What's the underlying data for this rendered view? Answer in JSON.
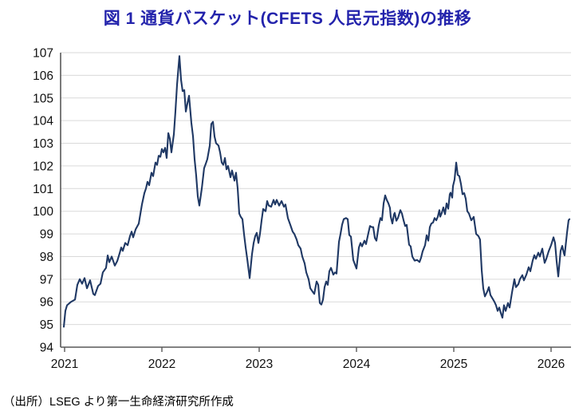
{
  "title": "図 1  通貨バスケット(CFETS 人民元指数)の推移",
  "source_note": "（出所）LSEG より第一生命経済研究所作成",
  "colors": {
    "title": "#2323AC",
    "line": "#1F3864",
    "grid": "#D9D9D9",
    "axis": "#595959",
    "tick_label": "#111111",
    "background": "#FFFFFF"
  },
  "chart_data": {
    "type": "line",
    "title": "図 1  通貨バスケット(CFETS 人民元指数)の推移",
    "series_name": "CFETS人民元指数",
    "xlabel": "",
    "ylabel": "",
    "ylim": [
      94,
      107
    ],
    "yticks": [
      94,
      95,
      96,
      97,
      98,
      99,
      100,
      101,
      102,
      103,
      104,
      105,
      106,
      107
    ],
    "xlim": [
      2020.959,
      2026.205
    ],
    "xticks": [
      2021,
      2022,
      2023,
      2024,
      2025,
      2026
    ],
    "grid": "horizontal",
    "legend": "none",
    "points": [
      [
        2020.992,
        94.9
      ],
      [
        2021.008,
        95.6
      ],
      [
        2021.025,
        95.85
      ],
      [
        2021.066,
        96.0
      ],
      [
        2021.107,
        96.1
      ],
      [
        2021.131,
        96.75
      ],
      [
        2021.156,
        97.0
      ],
      [
        2021.18,
        96.8
      ],
      [
        2021.205,
        97.05
      ],
      [
        2021.23,
        96.6
      ],
      [
        2021.262,
        96.95
      ],
      [
        2021.295,
        96.35
      ],
      [
        2021.311,
        96.3
      ],
      [
        2021.344,
        96.7
      ],
      [
        2021.369,
        96.8
      ],
      [
        2021.393,
        97.3
      ],
      [
        2021.426,
        97.5
      ],
      [
        2021.443,
        98.05
      ],
      [
        2021.459,
        97.75
      ],
      [
        2021.484,
        98.0
      ],
      [
        2021.516,
        97.6
      ],
      [
        2021.541,
        97.8
      ],
      [
        2021.566,
        98.15
      ],
      [
        2021.582,
        98.4
      ],
      [
        2021.598,
        98.25
      ],
      [
        2021.623,
        98.6
      ],
      [
        2021.648,
        98.5
      ],
      [
        2021.672,
        98.9
      ],
      [
        2021.689,
        99.1
      ],
      [
        2021.705,
        98.85
      ],
      [
        2021.73,
        99.2
      ],
      [
        2021.762,
        99.45
      ],
      [
        2021.795,
        100.3
      ],
      [
        2021.82,
        100.8
      ],
      [
        2021.836,
        101.0
      ],
      [
        2021.852,
        101.3
      ],
      [
        2021.869,
        101.15
      ],
      [
        2021.893,
        101.7
      ],
      [
        2021.91,
        101.55
      ],
      [
        2021.934,
        102.15
      ],
      [
        2021.951,
        102.05
      ],
      [
        2021.967,
        102.45
      ],
      [
        2021.984,
        102.4
      ],
      [
        2022.0,
        102.75
      ],
      [
        2022.016,
        102.6
      ],
      [
        2022.033,
        102.8
      ],
      [
        2022.049,
        102.35
      ],
      [
        2022.066,
        103.45
      ],
      [
        2022.082,
        103.2
      ],
      [
        2022.098,
        102.6
      ],
      [
        2022.123,
        103.4
      ],
      [
        2022.139,
        104.4
      ],
      [
        2022.156,
        105.6
      ],
      [
        2022.18,
        106.85
      ],
      [
        2022.197,
        105.8
      ],
      [
        2022.213,
        105.3
      ],
      [
        2022.23,
        105.35
      ],
      [
        2022.246,
        104.4
      ],
      [
        2022.262,
        104.75
      ],
      [
        2022.279,
        105.1
      ],
      [
        2022.303,
        103.9
      ],
      [
        2022.32,
        103.3
      ],
      [
        2022.336,
        102.3
      ],
      [
        2022.352,
        101.6
      ],
      [
        2022.369,
        100.65
      ],
      [
        2022.385,
        100.25
      ],
      [
        2022.41,
        101.0
      ],
      [
        2022.434,
        101.9
      ],
      [
        2022.451,
        102.1
      ],
      [
        2022.467,
        102.3
      ],
      [
        2022.492,
        102.9
      ],
      [
        2022.508,
        103.85
      ],
      [
        2022.525,
        103.95
      ],
      [
        2022.541,
        103.3
      ],
      [
        2022.557,
        103.0
      ],
      [
        2022.582,
        102.9
      ],
      [
        2022.598,
        102.6
      ],
      [
        2022.615,
        102.15
      ],
      [
        2022.631,
        102.05
      ],
      [
        2022.648,
        102.35
      ],
      [
        2022.664,
        101.85
      ],
      [
        2022.68,
        102.0
      ],
      [
        2022.705,
        101.5
      ],
      [
        2022.721,
        101.8
      ],
      [
        2022.746,
        101.35
      ],
      [
        2022.762,
        101.7
      ],
      [
        2022.779,
        101.0
      ],
      [
        2022.795,
        99.9
      ],
      [
        2022.811,
        99.75
      ],
      [
        2022.828,
        99.65
      ],
      [
        2022.844,
        99.0
      ],
      [
        2022.861,
        98.4
      ],
      [
        2022.877,
        97.9
      ],
      [
        2022.902,
        97.05
      ],
      [
        2022.926,
        98.1
      ],
      [
        2022.943,
        98.6
      ],
      [
        2022.959,
        98.9
      ],
      [
        2022.975,
        99.05
      ],
      [
        2022.992,
        98.6
      ],
      [
        2023.008,
        99.0
      ],
      [
        2023.025,
        99.6
      ],
      [
        2023.041,
        100.1
      ],
      [
        2023.066,
        100.0
      ],
      [
        2023.082,
        100.45
      ],
      [
        2023.098,
        100.25
      ],
      [
        2023.123,
        100.2
      ],
      [
        2023.148,
        100.5
      ],
      [
        2023.164,
        100.3
      ],
      [
        2023.18,
        100.5
      ],
      [
        2023.205,
        100.25
      ],
      [
        2023.23,
        100.45
      ],
      [
        2023.254,
        100.2
      ],
      [
        2023.27,
        100.3
      ],
      [
        2023.295,
        99.7
      ],
      [
        2023.32,
        99.4
      ],
      [
        2023.344,
        99.1
      ],
      [
        2023.361,
        99.0
      ],
      [
        2023.385,
        98.75
      ],
      [
        2023.402,
        98.5
      ],
      [
        2023.426,
        98.35
      ],
      [
        2023.443,
        98.0
      ],
      [
        2023.467,
        97.7
      ],
      [
        2023.484,
        97.3
      ],
      [
        2023.508,
        97.0
      ],
      [
        2023.525,
        96.6
      ],
      [
        2023.549,
        96.45
      ],
      [
        2023.566,
        96.35
      ],
      [
        2023.59,
        96.9
      ],
      [
        2023.607,
        96.75
      ],
      [
        2023.623,
        95.95
      ],
      [
        2023.639,
        95.88
      ],
      [
        2023.656,
        96.1
      ],
      [
        2023.672,
        96.65
      ],
      [
        2023.689,
        96.9
      ],
      [
        2023.705,
        96.75
      ],
      [
        2023.721,
        97.35
      ],
      [
        2023.738,
        97.5
      ],
      [
        2023.762,
        97.2
      ],
      [
        2023.779,
        97.3
      ],
      [
        2023.795,
        97.25
      ],
      [
        2023.82,
        98.65
      ],
      [
        2023.836,
        99.0
      ],
      [
        2023.852,
        99.4
      ],
      [
        2023.869,
        99.65
      ],
      [
        2023.893,
        99.7
      ],
      [
        2023.91,
        99.65
      ],
      [
        2023.926,
        98.95
      ],
      [
        2023.943,
        98.88
      ],
      [
        2023.967,
        97.85
      ],
      [
        2024.0,
        97.47
      ],
      [
        2024.025,
        98.4
      ],
      [
        2024.041,
        98.6
      ],
      [
        2024.057,
        98.45
      ],
      [
        2024.082,
        98.7
      ],
      [
        2024.098,
        98.55
      ],
      [
        2024.123,
        99.05
      ],
      [
        2024.139,
        99.35
      ],
      [
        2024.156,
        99.3
      ],
      [
        2024.172,
        99.3
      ],
      [
        2024.189,
        98.82
      ],
      [
        2024.205,
        98.7
      ],
      [
        2024.23,
        99.4
      ],
      [
        2024.246,
        99.7
      ],
      [
        2024.262,
        99.6
      ],
      [
        2024.279,
        100.35
      ],
      [
        2024.295,
        100.7
      ],
      [
        2024.311,
        100.5
      ],
      [
        2024.328,
        100.35
      ],
      [
        2024.344,
        100.15
      ],
      [
        2024.352,
        99.76
      ],
      [
        2024.369,
        99.46
      ],
      [
        2024.385,
        99.85
      ],
      [
        2024.393,
        99.93
      ],
      [
        2024.41,
        99.58
      ],
      [
        2024.426,
        99.7
      ],
      [
        2024.451,
        100.05
      ],
      [
        2024.467,
        99.9
      ],
      [
        2024.484,
        99.6
      ],
      [
        2024.5,
        99.35
      ],
      [
        2024.516,
        99.4
      ],
      [
        2024.541,
        98.52
      ],
      [
        2024.557,
        98.45
      ],
      [
        2024.574,
        98.0
      ],
      [
        2024.598,
        97.82
      ],
      [
        2024.623,
        97.85
      ],
      [
        2024.648,
        97.76
      ],
      [
        2024.664,
        97.95
      ],
      [
        2024.68,
        98.23
      ],
      [
        2024.705,
        98.5
      ],
      [
        2024.721,
        98.94
      ],
      [
        2024.738,
        98.7
      ],
      [
        2024.754,
        99.3
      ],
      [
        2024.77,
        99.46
      ],
      [
        2024.787,
        99.5
      ],
      [
        2024.803,
        99.7
      ],
      [
        2024.82,
        99.6
      ],
      [
        2024.836,
        99.76
      ],
      [
        2024.852,
        100.05
      ],
      [
        2024.861,
        99.76
      ],
      [
        2024.877,
        99.93
      ],
      [
        2024.893,
        100.17
      ],
      [
        2024.91,
        99.87
      ],
      [
        2024.926,
        100.35
      ],
      [
        2024.943,
        100.11
      ],
      [
        2024.959,
        100.75
      ],
      [
        2024.967,
        100.82
      ],
      [
        2024.984,
        100.6
      ],
      [
        2024.992,
        101.11
      ],
      [
        2025.008,
        101.4
      ],
      [
        2025.025,
        102.15
      ],
      [
        2025.041,
        101.6
      ],
      [
        2025.057,
        101.55
      ],
      [
        2025.074,
        101.2
      ],
      [
        2025.09,
        100.75
      ],
      [
        2025.107,
        100.8
      ],
      [
        2025.123,
        100.55
      ],
      [
        2025.139,
        100.0
      ],
      [
        2025.156,
        99.9
      ],
      [
        2025.18,
        99.6
      ],
      [
        2025.205,
        99.75
      ],
      [
        2025.23,
        99.0
      ],
      [
        2025.254,
        98.9
      ],
      [
        2025.27,
        98.75
      ],
      [
        2025.287,
        97.4
      ],
      [
        2025.303,
        96.6
      ],
      [
        2025.32,
        96.24
      ],
      [
        2025.344,
        96.45
      ],
      [
        2025.361,
        96.65
      ],
      [
        2025.377,
        96.3
      ],
      [
        2025.402,
        96.12
      ],
      [
        2025.418,
        96.0
      ],
      [
        2025.434,
        95.85
      ],
      [
        2025.451,
        95.6
      ],
      [
        2025.467,
        95.75
      ],
      [
        2025.484,
        95.5
      ],
      [
        2025.5,
        95.3
      ],
      [
        2025.516,
        95.85
      ],
      [
        2025.533,
        95.6
      ],
      [
        2025.557,
        95.95
      ],
      [
        2025.574,
        95.75
      ],
      [
        2025.598,
        96.4
      ],
      [
        2025.623,
        97.0
      ],
      [
        2025.639,
        96.65
      ],
      [
        2025.664,
        96.78
      ],
      [
        2025.68,
        97.0
      ],
      [
        2025.705,
        97.18
      ],
      [
        2025.721,
        96.95
      ],
      [
        2025.746,
        97.2
      ],
      [
        2025.77,
        97.53
      ],
      [
        2025.787,
        97.35
      ],
      [
        2025.811,
        97.82
      ],
      [
        2025.828,
        98.06
      ],
      [
        2025.844,
        97.9
      ],
      [
        2025.869,
        98.17
      ],
      [
        2025.885,
        98.0
      ],
      [
        2025.91,
        98.35
      ],
      [
        2025.934,
        97.72
      ],
      [
        2025.951,
        97.9
      ],
      [
        2025.975,
        98.23
      ],
      [
        2026.0,
        98.5
      ],
      [
        2026.025,
        98.85
      ],
      [
        2026.041,
        98.6
      ],
      [
        2026.057,
        97.8
      ],
      [
        2026.074,
        97.12
      ],
      [
        2026.098,
        98.25
      ],
      [
        2026.115,
        98.47
      ],
      [
        2026.131,
        98.15
      ],
      [
        2026.139,
        98.05
      ],
      [
        2026.164,
        99.05
      ],
      [
        2026.18,
        99.6
      ],
      [
        2026.189,
        99.65
      ]
    ]
  }
}
